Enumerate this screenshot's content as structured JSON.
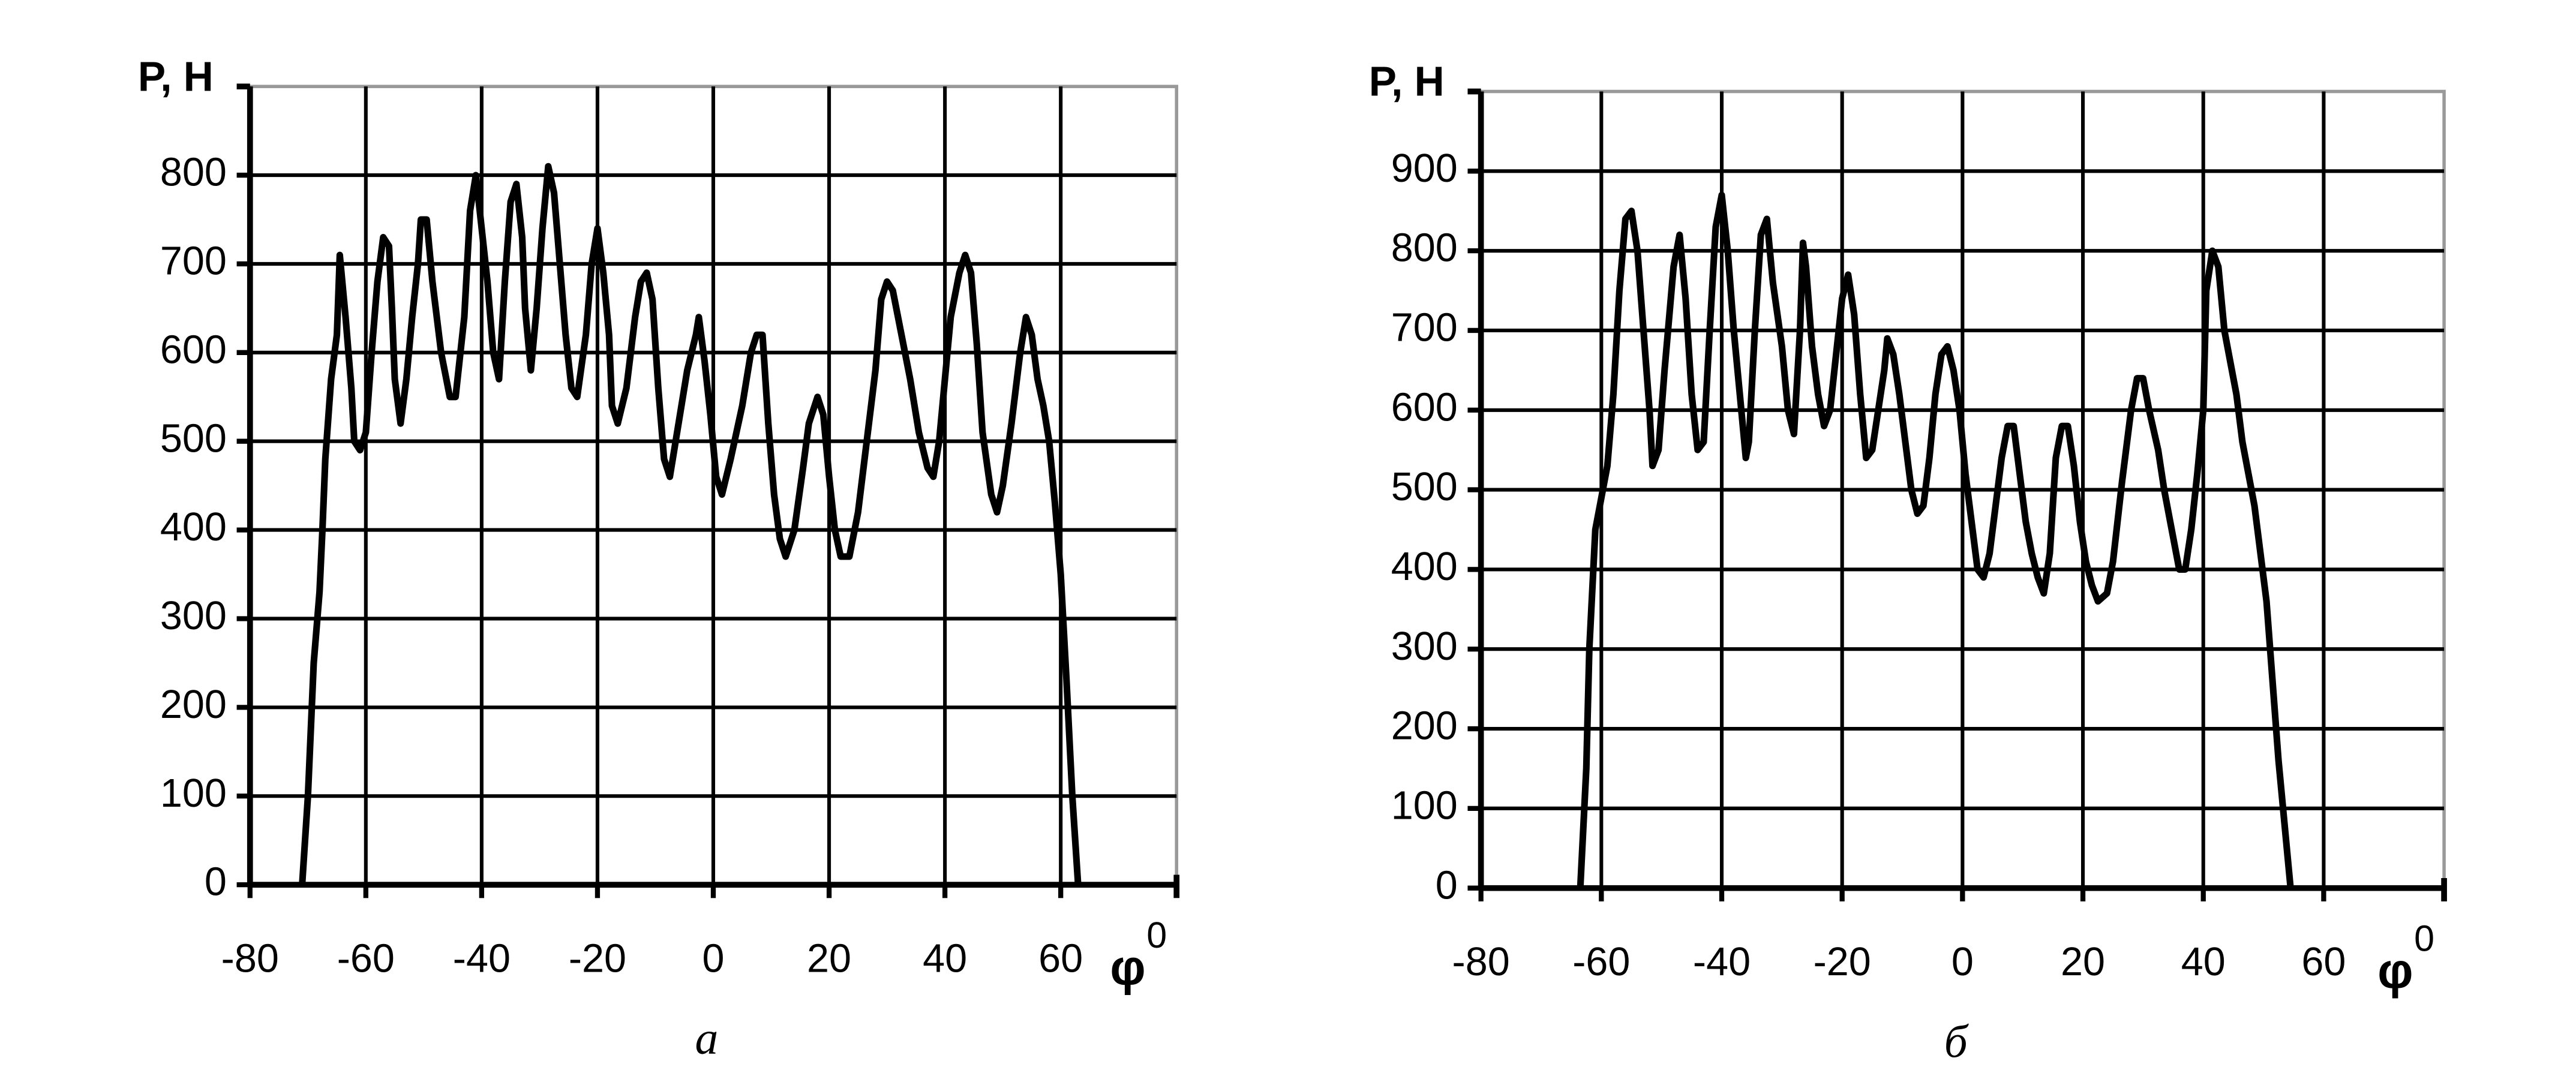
{
  "chart_data": [
    {
      "type": "line",
      "ylabel": "P, H",
      "xlabel": "φ",
      "xlabel_superscript": "0",
      "caption": "а",
      "color": "#000000",
      "grid": true,
      "xlim": [
        -80,
        80
      ],
      "xticks": [
        -80,
        -60,
        -40,
        -20,
        0,
        20,
        40,
        60
      ],
      "ylim": [
        0,
        900
      ],
      "yticks": [
        0,
        100,
        200,
        300,
        400,
        500,
        600,
        700,
        800
      ],
      "x": [
        -71,
        -70,
        -69,
        -68,
        -67.5,
        -67,
        -66,
        -65,
        -64.5,
        -63.5,
        -62.5,
        -62,
        -61,
        -60,
        -59,
        -58,
        -57,
        -56,
        -55.5,
        -55,
        -54,
        -53,
        -52,
        -51,
        -50.5,
        -49.5,
        -48.5,
        -47,
        -45.5,
        -44.5,
        -43,
        -42,
        -41,
        -40,
        -39,
        -38,
        -37,
        -36,
        -35,
        -34,
        -33,
        -32.5,
        -31.5,
        -30.5,
        -29.5,
        -28.5,
        -27.5,
        -26.5,
        -25.5,
        -24.5,
        -23.5,
        -22,
        -21,
        -20,
        -19,
        -18,
        -17.5,
        -16.5,
        -15,
        -13.5,
        -12.5,
        -11.5,
        -10.5,
        -9.5,
        -8.5,
        -7.5,
        -6,
        -4.5,
        -3,
        -2.5,
        -1.5,
        -0.5,
        0.5,
        1.5,
        3,
        5,
        6.5,
        7.5,
        8.5,
        9.5,
        10.5,
        11.5,
        12.5,
        14,
        15.5,
        16.5,
        18,
        19,
        20,
        21,
        22,
        23.5,
        25,
        26.5,
        28,
        29,
        30,
        31,
        32.5,
        34,
        35.5,
        37,
        38,
        39,
        40,
        41,
        42.5,
        43.5,
        44.5,
        45.5,
        46.5,
        48,
        49,
        50,
        51.5,
        53,
        54,
        55,
        56,
        57,
        58,
        59,
        60,
        61,
        62,
        63
      ],
      "values": [
        0,
        100,
        250,
        330,
        400,
        480,
        570,
        620,
        710,
        640,
        560,
        500,
        490,
        510,
        600,
        680,
        730,
        720,
        650,
        570,
        520,
        570,
        640,
        700,
        750,
        750,
        680,
        600,
        550,
        550,
        640,
        760,
        800,
        740,
        680,
        600,
        570,
        680,
        770,
        790,
        730,
        650,
        580,
        650,
        740,
        810,
        780,
        700,
        620,
        560,
        550,
        620,
        700,
        740,
        690,
        620,
        540,
        520,
        560,
        640,
        680,
        690,
        660,
        560,
        480,
        460,
        520,
        580,
        620,
        640,
        590,
        530,
        460,
        440,
        480,
        540,
        600,
        620,
        620,
        520,
        440,
        390,
        370,
        400,
        470,
        520,
        550,
        530,
        460,
        400,
        370,
        370,
        420,
        500,
        580,
        660,
        680,
        670,
        620,
        570,
        510,
        470,
        460,
        500,
        570,
        640,
        690,
        710,
        690,
        610,
        510,
        440,
        420,
        450,
        520,
        600,
        640,
        620,
        570,
        540,
        500,
        430,
        350,
        230,
        100,
        0
      ]
    },
    {
      "type": "line",
      "ylabel": "P, H",
      "xlabel": "φ",
      "xlabel_superscript": "0",
      "caption": "б",
      "color": "#000000",
      "grid": true,
      "xlim": [
        -80,
        80
      ],
      "xticks": [
        -80,
        -60,
        -40,
        -20,
        0,
        20,
        40,
        60
      ],
      "ylim": [
        0,
        1000
      ],
      "yticks": [
        0,
        100,
        200,
        300,
        400,
        500,
        600,
        700,
        800,
        900
      ],
      "x": [
        -63.5,
        -62.5,
        -62,
        -61,
        -60,
        -59,
        -58,
        -57,
        -56,
        -55,
        -54,
        -53,
        -52,
        -51.5,
        -50.5,
        -49.5,
        -48,
        -47,
        -46,
        -45,
        -44,
        -43,
        -42,
        -41,
        -40,
        -39,
        -38,
        -37,
        -36,
        -35.5,
        -34.5,
        -33.5,
        -32.5,
        -31.5,
        -30,
        -29,
        -28,
        -27,
        -26.5,
        -26,
        -25,
        -24,
        -23,
        -22,
        -21,
        -20,
        -19,
        -18,
        -17,
        -16,
        -15,
        -14,
        -13,
        -12.5,
        -11.5,
        -10.5,
        -9.5,
        -8.5,
        -7.5,
        -6.5,
        -5.5,
        -4.5,
        -3.5,
        -2.5,
        -1.5,
        -0.5,
        0.5,
        1.5,
        2.5,
        3.5,
        4.5,
        5.5,
        6.5,
        7.5,
        8.5,
        9.5,
        10.5,
        11.5,
        12.5,
        13.5,
        14.5,
        15.5,
        16.5,
        17.5,
        18.5,
        19.5,
        20.5,
        21.5,
        22.5,
        24,
        25,
        26.5,
        28,
        29,
        30,
        31,
        32.5,
        33.5,
        35,
        36,
        37,
        38,
        39,
        40,
        40.5,
        41.5,
        42.5,
        43.5,
        44.5,
        45.5,
        46.5,
        47.5,
        48.5,
        49.5,
        50.5,
        51.5,
        52.5,
        53.5,
        54.5
      ],
      "values": [
        0,
        150,
        300,
        450,
        490,
        530,
        620,
        750,
        840,
        850,
        800,
        700,
        600,
        530,
        550,
        650,
        780,
        820,
        740,
        620,
        550,
        560,
        700,
        830,
        870,
        800,
        700,
        620,
        540,
        560,
        700,
        820,
        840,
        760,
        680,
        600,
        570,
        700,
        810,
        780,
        680,
        620,
        580,
        600,
        670,
        740,
        770,
        720,
        620,
        540,
        550,
        600,
        650,
        690,
        670,
        620,
        560,
        500,
        470,
        480,
        540,
        620,
        670,
        680,
        650,
        600,
        520,
        460,
        400,
        390,
        420,
        480,
        540,
        580,
        580,
        520,
        460,
        420,
        390,
        370,
        420,
        540,
        580,
        580,
        530,
        460,
        410,
        380,
        360,
        370,
        410,
        510,
        600,
        640,
        640,
        600,
        550,
        500,
        440,
        400,
        400,
        450,
        520,
        600,
        750,
        800,
        780,
        700,
        660,
        620,
        560,
        520,
        480,
        420,
        360,
        260,
        160,
        80,
        0
      ]
    }
  ]
}
